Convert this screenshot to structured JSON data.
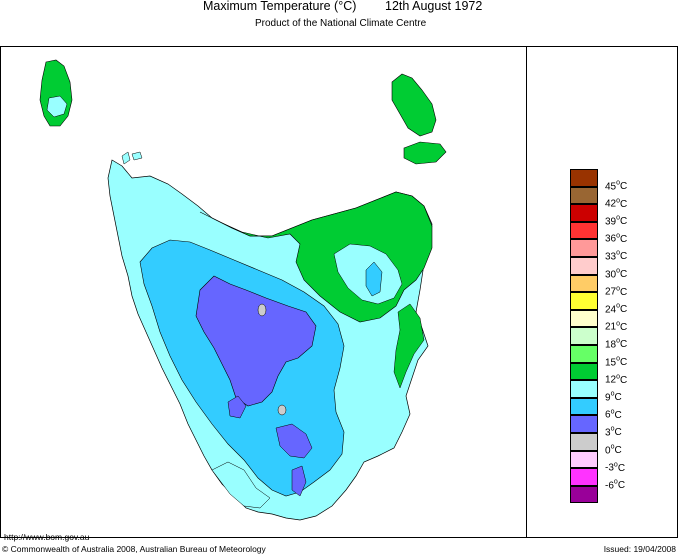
{
  "header": {
    "title_left": "Maximum Temperature (°C)",
    "title_date": "12th August 1972",
    "subtitle": "Product of the National Climate Centre"
  },
  "legend": [
    {
      "label": "45",
      "color": "#993300"
    },
    {
      "label": "42",
      "color": "#996633"
    },
    {
      "label": "39",
      "color": "#cc0000"
    },
    {
      "label": "36",
      "color": "#ff3333"
    },
    {
      "label": "33",
      "color": "#ff9999"
    },
    {
      "label": "30",
      "color": "#ffcccc"
    },
    {
      "label": "27",
      "color": "#ffcc66"
    },
    {
      "label": "24",
      "color": "#ffff33"
    },
    {
      "label": "21",
      "color": "#ffffcc"
    },
    {
      "label": "18",
      "color": "#ccffcc"
    },
    {
      "label": "15",
      "color": "#66ff66"
    },
    {
      "label": "12",
      "color": "#00cc33"
    },
    {
      "label": "9",
      "color": "#99ffff"
    },
    {
      "label": "6",
      "color": "#33ccff"
    },
    {
      "label": "3",
      "color": "#6666ff"
    },
    {
      "label": "0",
      "color": "#cccccc"
    },
    {
      "label": "-3",
      "color": "#ffccff"
    },
    {
      "label": "-6",
      "color": "#ff33ff"
    }
  ],
  "legend_bottom_color": "#990099",
  "legend_unit": "°C",
  "footer": {
    "url": "http://www.bom.gov.au",
    "copyright": "© Commonwealth of Australia 2008, Australian Bureau of Meteorology",
    "issued": "Issued: 19/04/2008"
  }
}
